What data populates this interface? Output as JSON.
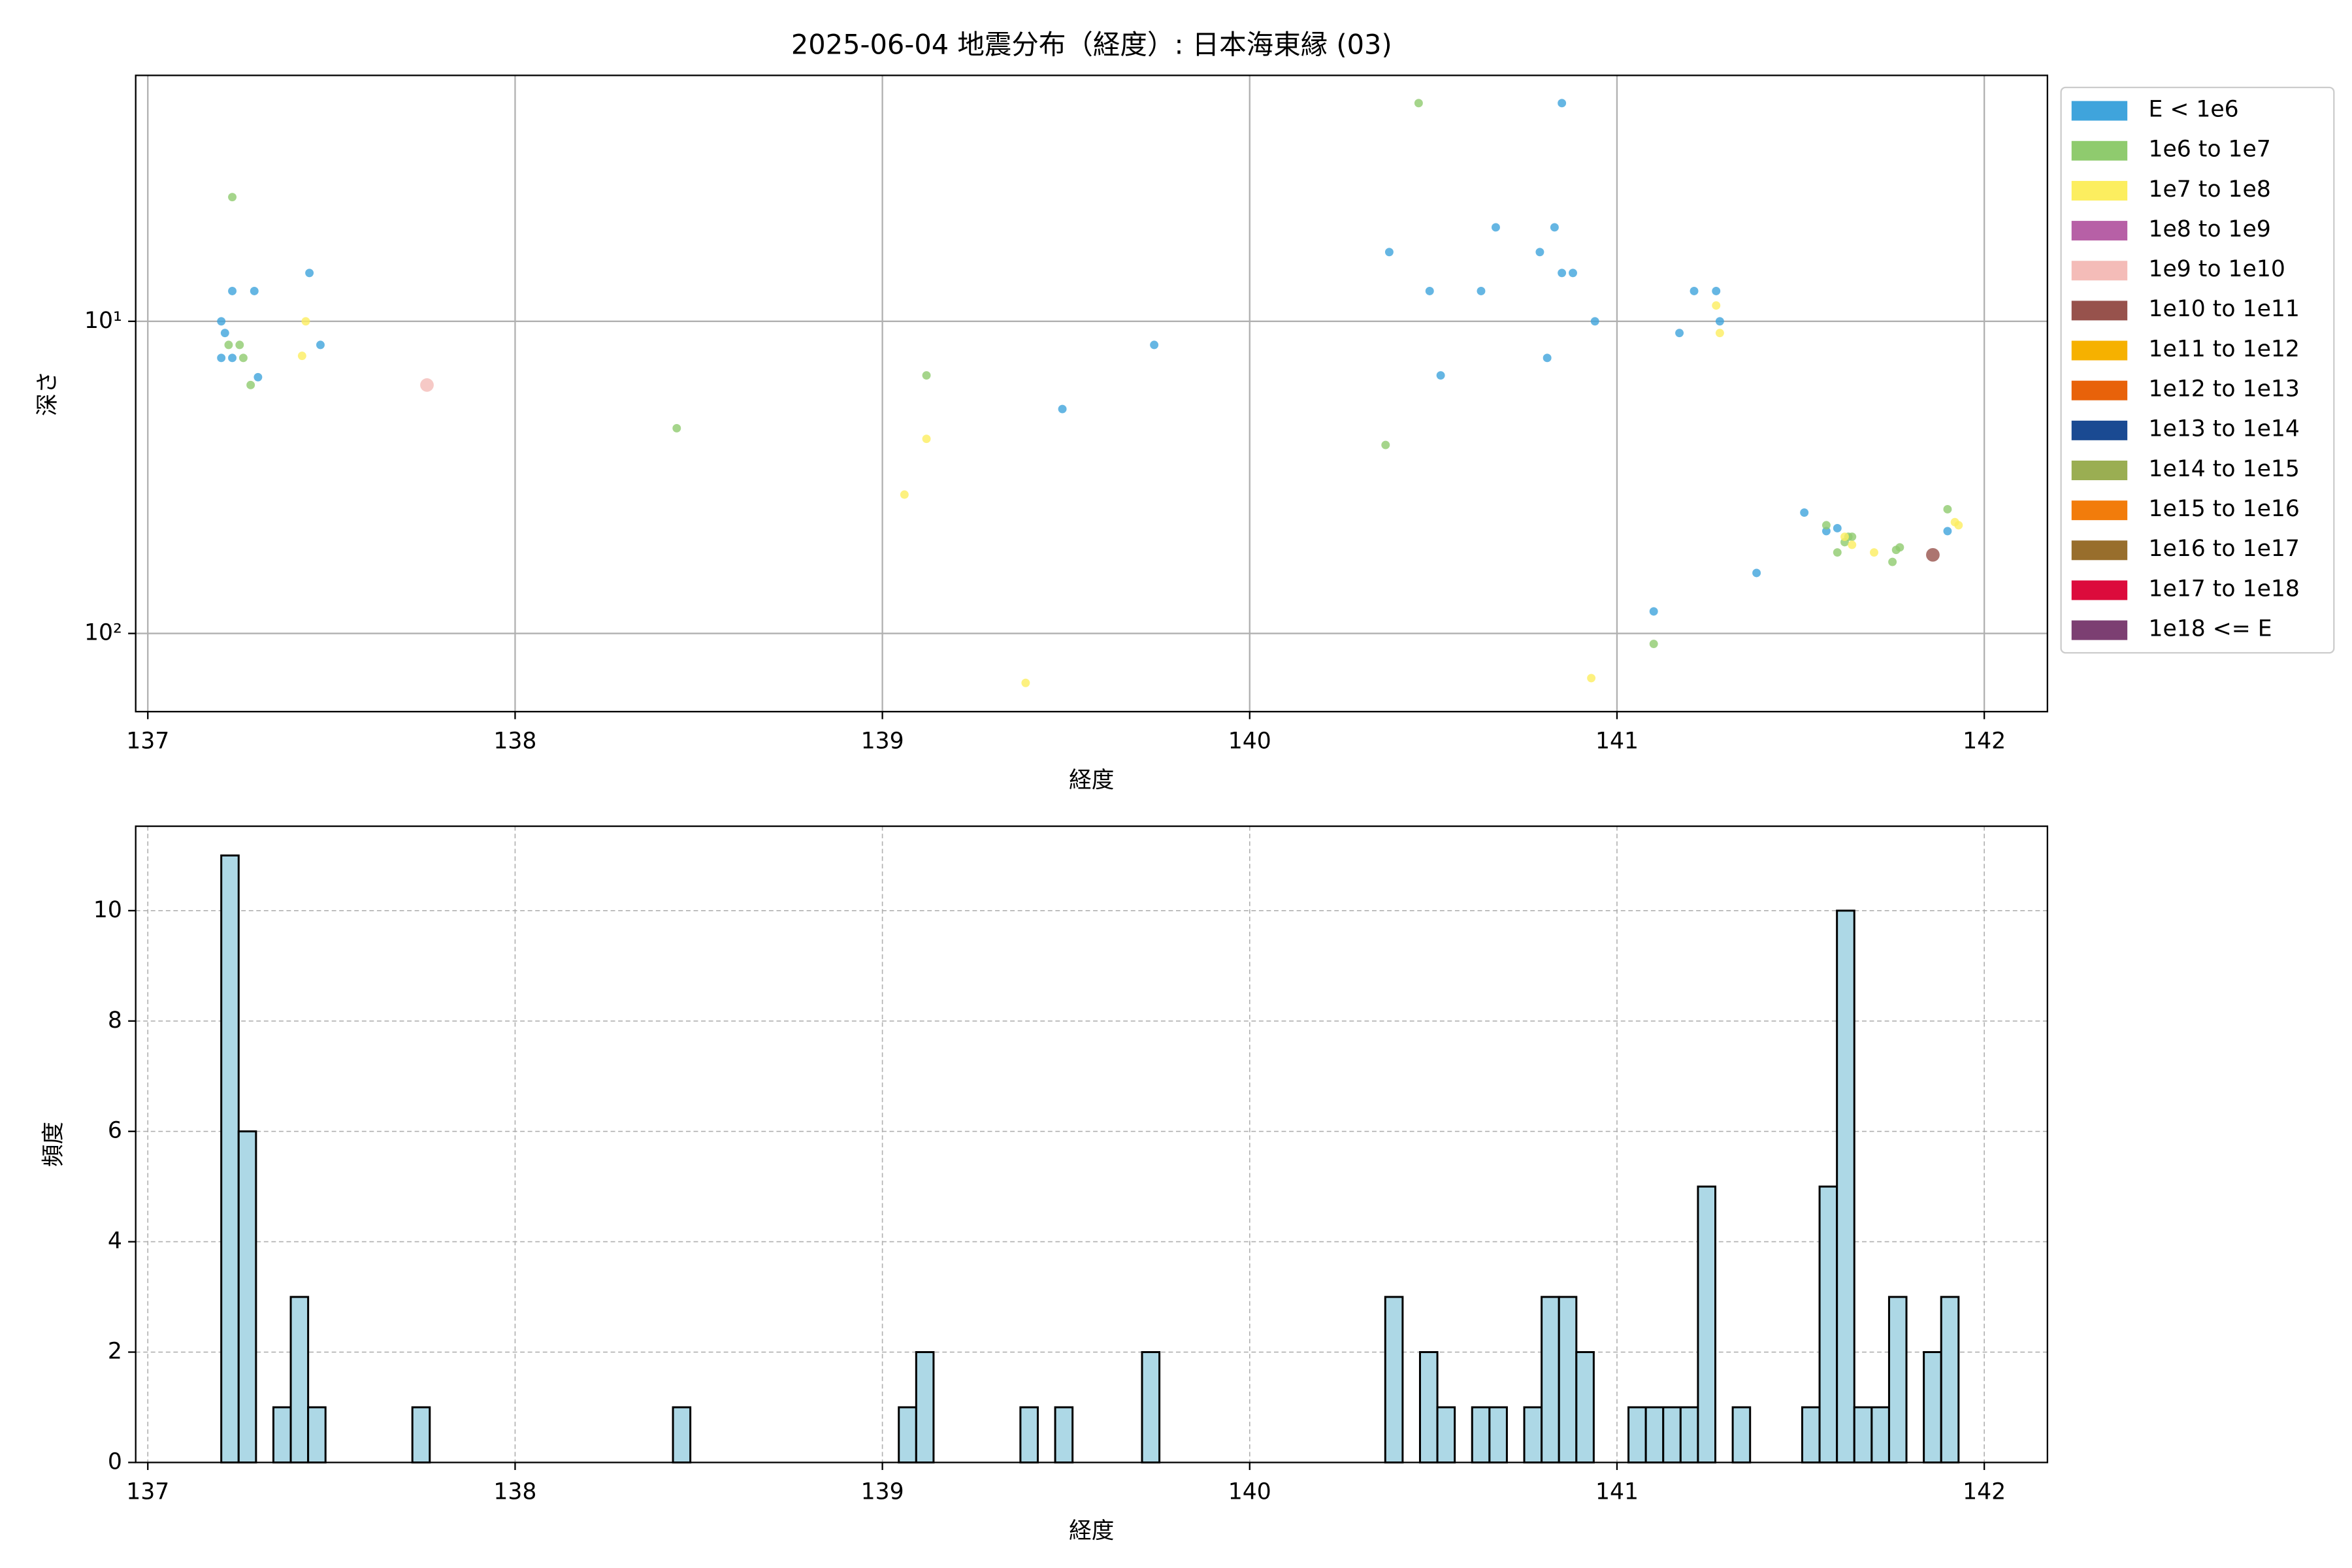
{
  "chart_data": [
    {
      "type": "scatter",
      "title": "2025-06-04 地震分布（経度）: 日本海東縁 (03)",
      "xlabel": "経度",
      "ylabel": "深さ",
      "xlim": [
        136.967,
        142.172
      ],
      "xticks": [
        137,
        138,
        139,
        140,
        141,
        142
      ],
      "ylim": [
        1.63,
        178
      ],
      "yscale": "log",
      "invert_y": true,
      "yticks": [
        {
          "value": 10,
          "label": "10¹"
        },
        {
          "value": 100,
          "label": "10²"
        }
      ],
      "grid": true,
      "grid_style": "solid",
      "legend": "right",
      "series": [
        {
          "name": "E < 1e6",
          "color": "#3fa4dc",
          "x": [
            137.2,
            137.21,
            137.23,
            137.29,
            137.2,
            137.23,
            137.3,
            137.44,
            137.47,
            139.49,
            139.74,
            140.38,
            140.49,
            140.52,
            140.63,
            140.67,
            140.79,
            140.81,
            140.83,
            140.85,
            140.85,
            140.88,
            140.94,
            141.1,
            141.17,
            141.21,
            141.27,
            141.28,
            141.38,
            141.51,
            141.57,
            141.6,
            141.9
          ],
          "values": [
            10,
            10.9,
            8.0,
            8.0,
            13.1,
            13.1,
            15.1,
            7.0,
            11.9,
            19.1,
            11.9,
            6.0,
            8.0,
            14.9,
            8.0,
            5.0,
            6.0,
            13.1,
            5.0,
            2.0,
            7.0,
            7.0,
            10,
            85,
            10.9,
            8.0,
            8.0,
            10,
            64,
            41,
            47,
            46,
            47
          ]
        },
        {
          "name": "1e6 to 1e7",
          "color": "#8fcb6e",
          "x": [
            137.23,
            137.22,
            137.25,
            137.26,
            137.28,
            138.44,
            139.12,
            140.37,
            140.46,
            141.1,
            141.57,
            141.6,
            141.63,
            141.64,
            141.75,
            141.76,
            141.77,
            141.9,
            141.62
          ],
          "values": [
            4.0,
            11.9,
            11.9,
            13.1,
            16.0,
            22.0,
            14.9,
            24.9,
            2.0,
            108,
            45,
            55,
            49,
            49,
            59,
            54,
            53,
            40,
            51
          ]
        },
        {
          "name": "1e7 to 1e8",
          "color": "#fcee5f",
          "x": [
            137.43,
            137.42,
            139.12,
            139.06,
            139.39,
            140.93,
            141.27,
            141.28,
            141.62,
            141.64,
            141.7,
            141.92,
            141.93
          ],
          "values": [
            10,
            12.9,
            23.8,
            35.9,
            144,
            139,
            8.9,
            10.9,
            49,
            52,
            55,
            44,
            45
          ]
        },
        {
          "name": "1e8 to 1e9",
          "color": "#b760a6",
          "x": [],
          "values": []
        },
        {
          "name": "1e9 to 1e10",
          "color": "#f4bcb8",
          "x": [
            137.76
          ],
          "values": [
            16.0
          ]
        },
        {
          "name": "1e10 to 1e11",
          "color": "#97524c",
          "x": [
            141.86
          ],
          "values": [
            56
          ]
        },
        {
          "name": "1e11 to 1e12",
          "color": "#f6b100",
          "x": [],
          "values": []
        },
        {
          "name": "1e12 to 1e13",
          "color": "#e8620a",
          "x": [],
          "values": []
        },
        {
          "name": "1e13 to 1e14",
          "color": "#1a4a92",
          "x": [],
          "values": []
        },
        {
          "name": "1e14 to 1e15",
          "color": "#9aae52",
          "x": [],
          "values": []
        },
        {
          "name": "1e15 to 1e16",
          "color": "#f27c0b",
          "x": [],
          "values": []
        },
        {
          "name": "1e16 to 1e17",
          "color": "#986e2c",
          "x": [],
          "values": []
        },
        {
          "name": "1e17 to 1e18",
          "color": "#dc0b3c",
          "x": [],
          "values": []
        },
        {
          "name": "1e18 <= E",
          "color": "#7c3f72",
          "x": [],
          "values": []
        }
      ]
    },
    {
      "type": "histogram",
      "xlabel": "経度",
      "ylabel": "頻度",
      "color": "#add8e6",
      "edgecolor": "#000000",
      "xlim": [
        136.967,
        142.172
      ],
      "xticks": [
        137,
        138,
        139,
        140,
        141,
        142
      ],
      "ylim": [
        0,
        11.53
      ],
      "yticks": [
        0,
        2,
        4,
        6,
        8,
        10
      ],
      "grid": true,
      "grid_style": "dashed",
      "bins": [
        137.2,
        137.2473,
        137.2946,
        137.3419,
        137.3892,
        137.4365,
        137.4838,
        137.5311,
        137.5784,
        137.6257,
        137.673,
        137.7203,
        137.7676,
        137.8149,
        137.8622,
        137.9095,
        137.9568,
        138.0041,
        138.0514,
        138.0987,
        138.146,
        138.1933,
        138.2406,
        138.2879,
        138.3352,
        138.3825,
        138.4298,
        138.4771,
        138.5244,
        138.5717,
        138.619,
        138.6663,
        138.7136,
        138.7609,
        138.8082,
        138.8555,
        138.9028,
        138.9501,
        138.9974,
        139.0447,
        139.092,
        139.1393,
        139.1866,
        139.2339,
        139.2812,
        139.3285,
        139.3758,
        139.4231,
        139.4704,
        139.5177,
        139.565,
        139.6123,
        139.6596,
        139.7069,
        139.7542,
        139.8015,
        139.8488,
        139.8961,
        139.9434,
        139.9907,
        140.038,
        140.0853,
        140.1326,
        140.1799,
        140.2272,
        140.2745,
        140.3218,
        140.3691,
        140.4164,
        140.4637,
        140.511,
        140.5583,
        140.6056,
        140.6529,
        140.7002,
        140.7475,
        140.7948,
        140.8421,
        140.8894,
        140.9367,
        140.984,
        141.0313,
        141.0786,
        141.1259,
        141.1732,
        141.2205,
        141.2678,
        141.3151,
        141.3624,
        141.4097,
        141.457,
        141.5043,
        141.5516,
        141.5989,
        141.6462,
        141.6935,
        141.7408,
        141.7881,
        141.8354,
        141.8827,
        141.93
      ],
      "values": [
        11,
        6,
        0,
        1,
        3,
        1,
        0,
        0,
        0,
        0,
        0,
        1,
        0,
        0,
        0,
        0,
        0,
        0,
        0,
        0,
        0,
        0,
        0,
        0,
        0,
        0,
        1,
        0,
        0,
        0,
        0,
        0,
        0,
        0,
        0,
        0,
        0,
        0,
        0,
        1,
        2,
        0,
        0,
        0,
        0,
        0,
        1,
        0,
        1,
        0,
        0,
        0,
        0,
        2,
        0,
        0,
        0,
        0,
        0,
        0,
        0,
        0,
        0,
        0,
        0,
        0,
        0,
        3,
        0,
        2,
        1,
        0,
        1,
        1,
        0,
        1,
        3,
        3,
        2,
        0,
        0,
        1,
        1,
        1,
        1,
        5,
        0,
        1,
        0,
        0,
        0,
        1,
        5,
        10,
        1,
        1,
        3,
        0,
        2,
        3
      ]
    }
  ]
}
